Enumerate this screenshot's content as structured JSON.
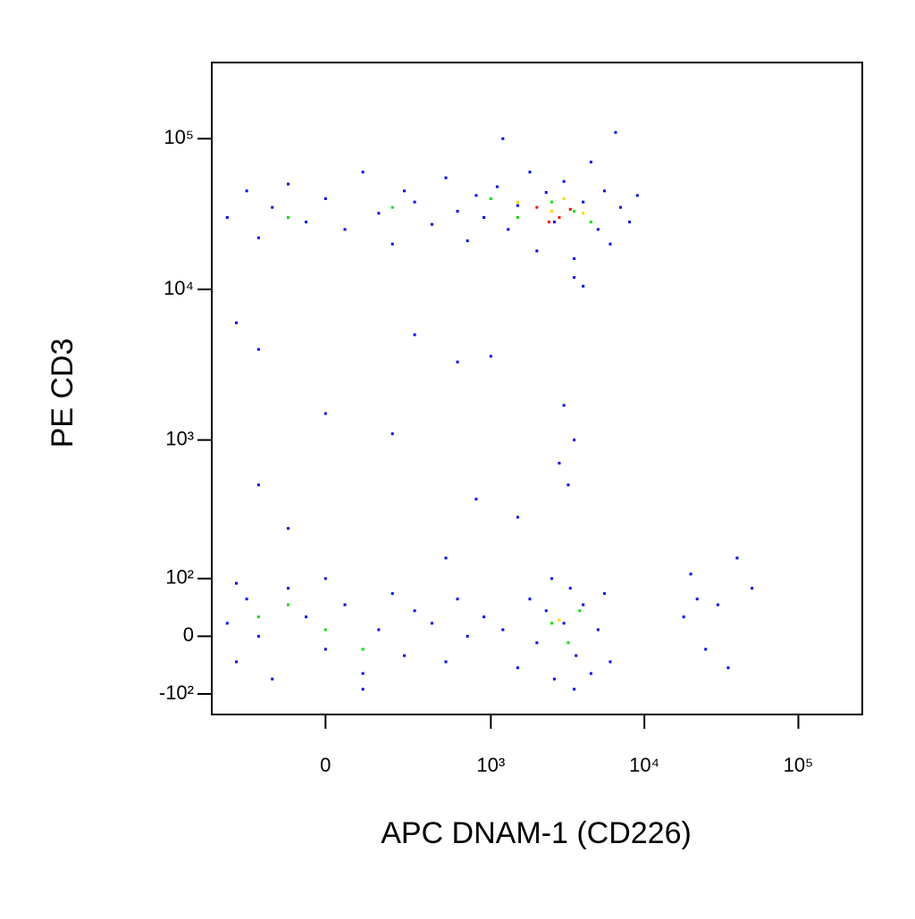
{
  "chart_data": {
    "type": "scatter",
    "xlabel": "APC DNAM-1 (CD226)",
    "ylabel": "PE CD3",
    "xscale": "biexponential",
    "yscale": "biexponential",
    "xlim": [
      -450,
      260000
    ],
    "ylim": [
      -150,
      320000
    ],
    "xticks": [
      0,
      {
        "value": 1000,
        "label": "10³"
      },
      {
        "value": 10000,
        "label": "10⁴"
      },
      {
        "value": 100000,
        "label": "10⁵"
      }
    ],
    "yticks": [
      {
        "value": -100,
        "label": "-10²"
      },
      0,
      {
        "value": 100,
        "label": "10²"
      },
      {
        "value": 1000,
        "label": "10³"
      },
      {
        "value": 10000,
        "label": "10⁴"
      },
      {
        "value": 100000,
        "label": "10⁵"
      }
    ],
    "series": [
      {
        "color": "#0000ff",
        "x": [
          -350,
          -250,
          -200,
          -150,
          -100,
          -50,
          0,
          50,
          100,
          150,
          200,
          250,
          300,
          400,
          500,
          600,
          700,
          800,
          900,
          1100,
          1300,
          1500,
          1800,
          2000,
          2300,
          2600,
          3000,
          3500,
          4000,
          4500,
          5000,
          5500,
          6000,
          7000,
          8000,
          9000,
          3500,
          4000,
          1200,
          6500,
          -300,
          -200,
          0,
          200,
          300,
          600,
          1000,
          3000,
          3500,
          2800,
          3200,
          1500,
          800,
          -200,
          -100,
          500,
          -350,
          -300,
          -250,
          -200,
          -150,
          -100,
          -50,
          0,
          50,
          100,
          150,
          200,
          250,
          300,
          -300,
          0,
          100,
          400,
          500,
          600,
          700,
          900,
          1200,
          1500,
          1800,
          2000,
          2300,
          2600,
          3000,
          3300,
          3600,
          4000,
          4500,
          5000,
          5500,
          6000,
          2500,
          3500,
          18000,
          22000,
          25000,
          30000,
          35000,
          40000,
          50000,
          20000
        ],
        "y": [
          30000,
          45000,
          22000,
          35000,
          50000,
          28000,
          40000,
          25000,
          60000,
          32000,
          20000,
          45000,
          38000,
          27000,
          55000,
          33000,
          21000,
          42000,
          30000,
          48000,
          25000,
          36000,
          60000,
          18000,
          44000,
          28000,
          52000,
          16000,
          38000,
          70000,
          25000,
          45000,
          20000,
          35000,
          28000,
          42000,
          12000,
          10500,
          100000,
          110000,
          6000,
          4000,
          1500,
          1100,
          5000,
          3300,
          3600,
          1700,
          1000,
          700,
          500,
          300,
          400,
          500,
          250,
          150,
          20,
          -40,
          60,
          0,
          -70,
          80,
          30,
          -20,
          50,
          -60,
          10,
          70,
          -30,
          40,
          90,
          100,
          -90,
          20,
          -40,
          60,
          0,
          30,
          10,
          -50,
          60,
          -10,
          40,
          -70,
          20,
          80,
          -30,
          50,
          -60,
          10,
          70,
          -40,
          100,
          -90,
          30,
          60,
          -20,
          50,
          -50,
          150,
          80,
          110
        ]
      },
      {
        "color": "#00e000",
        "x": [
          200,
          1000,
          1500,
          2500,
          3500,
          4500,
          -100,
          -200,
          0,
          100,
          -100,
          2500,
          3200,
          3800
        ],
        "y": [
          35000,
          40000,
          30000,
          38000,
          33000,
          28000,
          30000,
          30,
          10,
          -20,
          50,
          20,
          -10,
          40
        ]
      },
      {
        "color": "#ffd000",
        "x": [
          1500,
          2500,
          3000,
          4000,
          2800
        ],
        "y": [
          38000,
          33000,
          40000,
          32000,
          25
        ]
      },
      {
        "color": "#ff0000",
        "x": [
          2000,
          2800,
          3300,
          2400
        ],
        "y": [
          35000,
          30000,
          34000,
          28000
        ]
      }
    ]
  }
}
